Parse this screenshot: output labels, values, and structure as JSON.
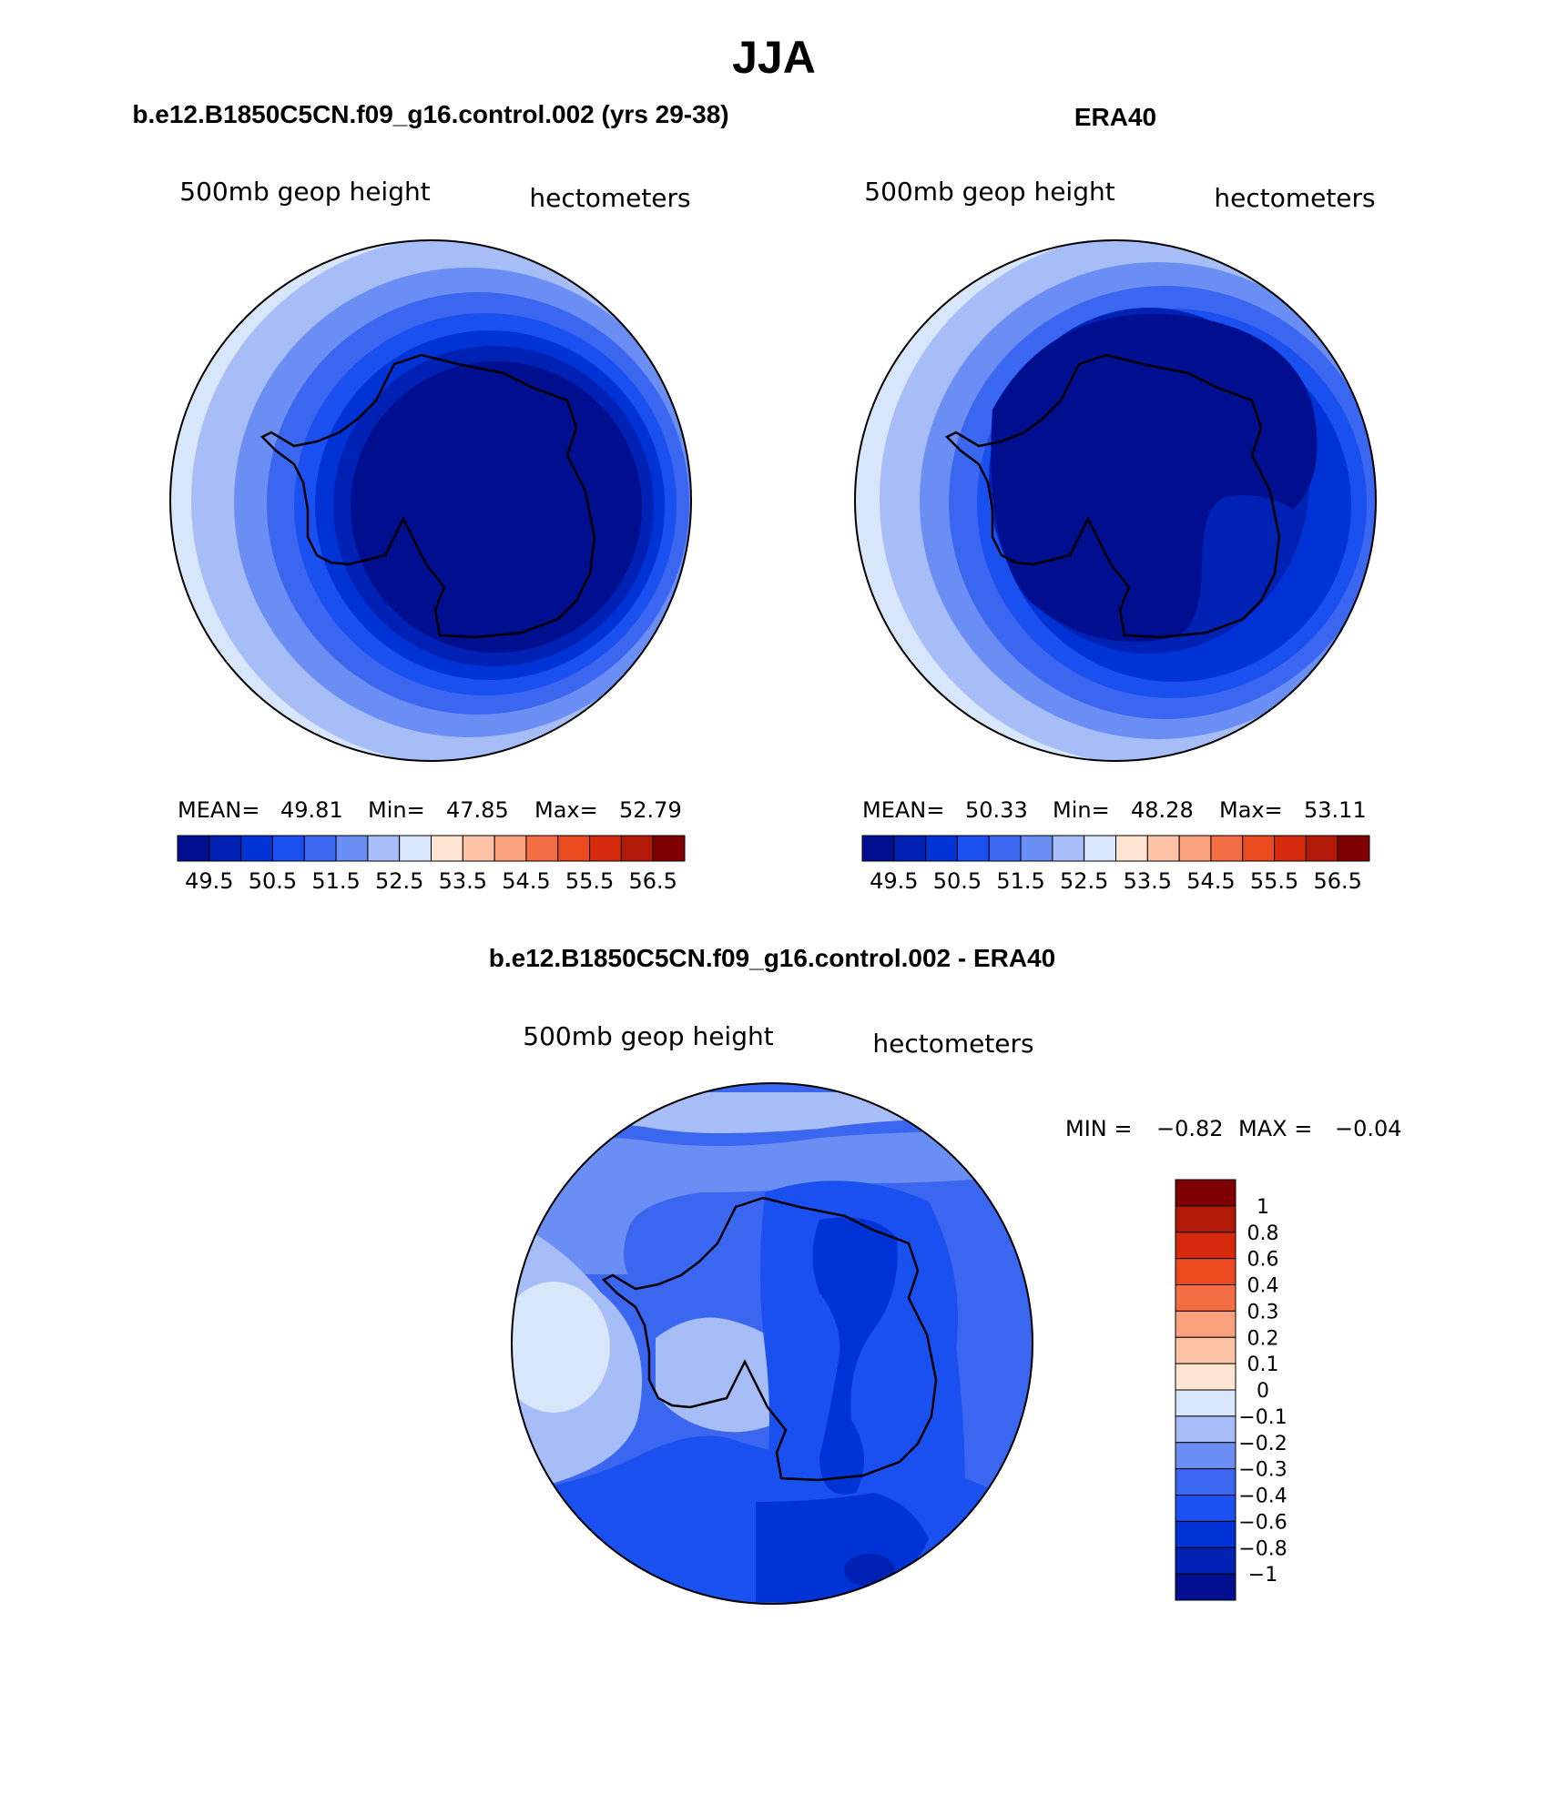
{
  "page_title": "JJA",
  "chart_data": [
    {
      "type": "heatmap",
      "projection": "south-polar-stereographic",
      "title": "b.e12.B1850C5CN.f09_g16.control.002 (yrs 29-38)",
      "variable": "500mb geop height",
      "units": "hectometers",
      "stats": {
        "mean_label": "MEAN=",
        "mean": "49.81",
        "min_label": "Min=",
        "min": "47.85",
        "max_label": "Max=",
        "max": "52.79"
      },
      "levels": [
        49.5,
        50,
        50.5,
        51,
        51.5,
        52,
        52.5,
        53,
        53.5,
        54,
        54.5,
        55,
        55.5,
        56,
        56.5
      ],
      "colorbar_tick_labels": [
        "49.5",
        "50.5",
        "51.5",
        "52.5",
        "53.5",
        "54.5",
        "55.5",
        "56.5"
      ],
      "colors": [
        "#000f8f",
        "#0022b4",
        "#0033d6",
        "#1a4ff0",
        "#3a66f0",
        "#6b8ef5",
        "#a6bdf7",
        "#d7e6fb",
        "#fde5d2",
        "#fcc3a5",
        "#f9a07c",
        "#f26d41",
        "#ea4a1d",
        "#d52a0b",
        "#b31908",
        "#7e0000"
      ],
      "range": [
        47.85,
        52.79
      ]
    },
    {
      "type": "heatmap",
      "projection": "south-polar-stereographic",
      "title": "ERA40",
      "variable": "500mb geop height",
      "units": "hectometers",
      "stats": {
        "mean_label": "MEAN=",
        "mean": "50.33",
        "min_label": "Min=",
        "min": "48.28",
        "max_label": "Max=",
        "max": "53.11"
      },
      "levels": [
        49.5,
        50,
        50.5,
        51,
        51.5,
        52,
        52.5,
        53,
        53.5,
        54,
        54.5,
        55,
        55.5,
        56,
        56.5
      ],
      "colorbar_tick_labels": [
        "49.5",
        "50.5",
        "51.5",
        "52.5",
        "53.5",
        "54.5",
        "55.5",
        "56.5"
      ],
      "colors": [
        "#000f8f",
        "#0022b4",
        "#0033d6",
        "#1a4ff0",
        "#3a66f0",
        "#6b8ef5",
        "#a6bdf7",
        "#d7e6fb",
        "#fde5d2",
        "#fcc3a5",
        "#f9a07c",
        "#f26d41",
        "#ea4a1d",
        "#d52a0b",
        "#b31908",
        "#7e0000"
      ],
      "range": [
        48.28,
        53.11
      ]
    },
    {
      "type": "heatmap",
      "projection": "south-polar-stereographic",
      "title": "b.e12.B1850C5CN.f09_g16.control.002 - ERA40",
      "variable": "500mb geop height",
      "units": "hectometers",
      "stats": {
        "min_label": "MIN =",
        "min": "−0.82",
        "max_label": "MAX =",
        "max": "−0.04"
      },
      "levels": [
        -1,
        -0.8,
        -0.6,
        -0.4,
        -0.3,
        -0.2,
        -0.1,
        0,
        0.1,
        0.2,
        0.3,
        0.4,
        0.6,
        0.8,
        1
      ],
      "colorbar_tick_labels": [
        "1",
        "0.8",
        "0.6",
        "0.4",
        "0.3",
        "0.2",
        "0.1",
        "0",
        "−0.1",
        "−0.2",
        "−0.3",
        "−0.4",
        "−0.6",
        "−0.8",
        "−1"
      ],
      "colors": [
        "#7e0000",
        "#b31908",
        "#d52a0b",
        "#ea4a1d",
        "#f26d41",
        "#f9a07c",
        "#fcc3a5",
        "#fde5d2",
        "#d7e6fb",
        "#a6bdf7",
        "#6b8ef5",
        "#3a66f0",
        "#1a4ff0",
        "#0033d6",
        "#0022b4",
        "#000f8f"
      ],
      "range": [
        -0.82,
        -0.04
      ]
    }
  ]
}
